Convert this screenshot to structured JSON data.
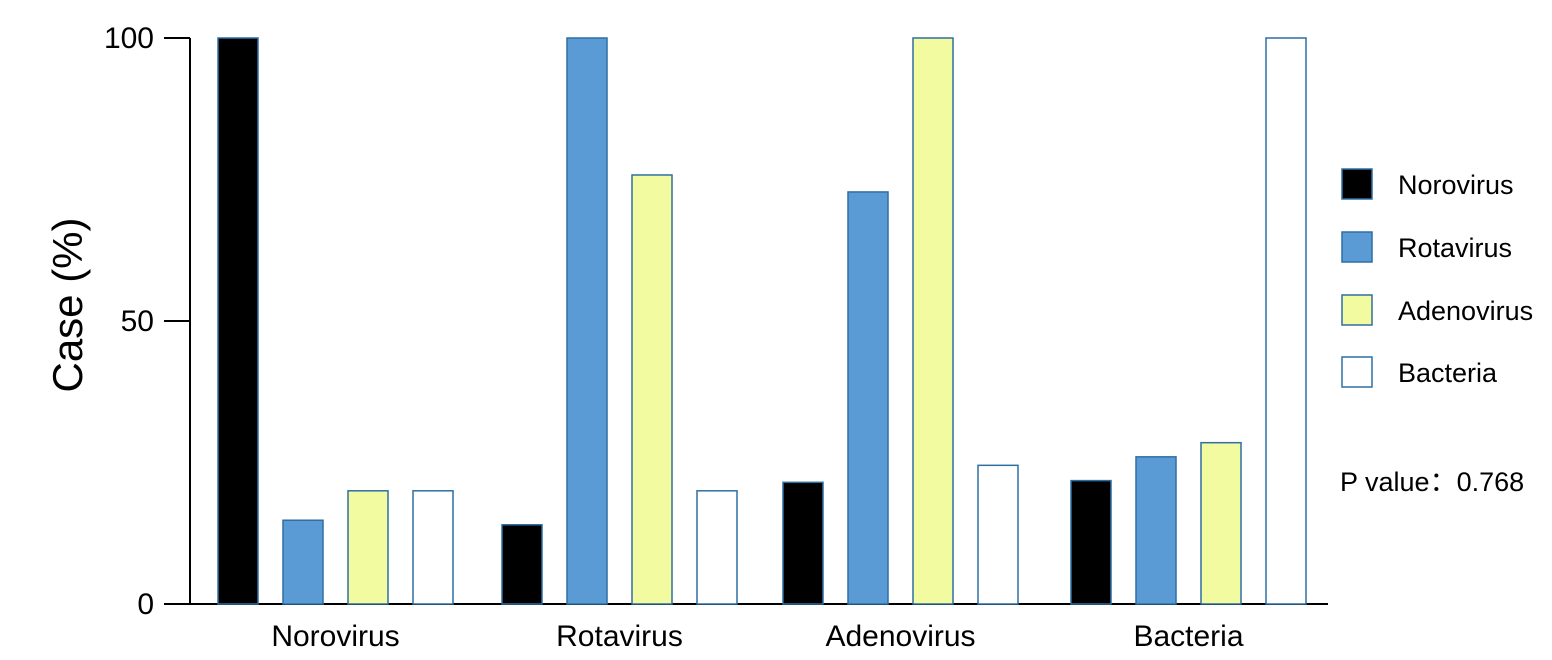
{
  "chart_data": {
    "type": "bar",
    "categories": [
      "Norovirus",
      "Rotavirus",
      "Adenovirus",
      "Bacteria"
    ],
    "series": [
      {
        "name": "Norovirus",
        "values": [
          100,
          14,
          21.5,
          21.8
        ]
      },
      {
        "name": "Rotavirus",
        "values": [
          14.8,
          100,
          72.8,
          26
        ]
      },
      {
        "name": "Adenovirus",
        "values": [
          20,
          75.8,
          100,
          28.5
        ]
      },
      {
        "name": "Bacteria",
        "values": [
          20,
          20,
          24.5,
          100
        ]
      }
    ],
    "colors": [
      "#000000",
      "#5b9bd5",
      "#f3fba0",
      "#ffffff"
    ],
    "stroke_color": "#2e6fa3",
    "ylabel": "Case (%)",
    "xlabel": "",
    "ylim": [
      0,
      100
    ],
    "yticks": [
      "0",
      "50",
      "100"
    ],
    "grid": false,
    "legend_position": "right",
    "annotation": "P value：0.768"
  }
}
